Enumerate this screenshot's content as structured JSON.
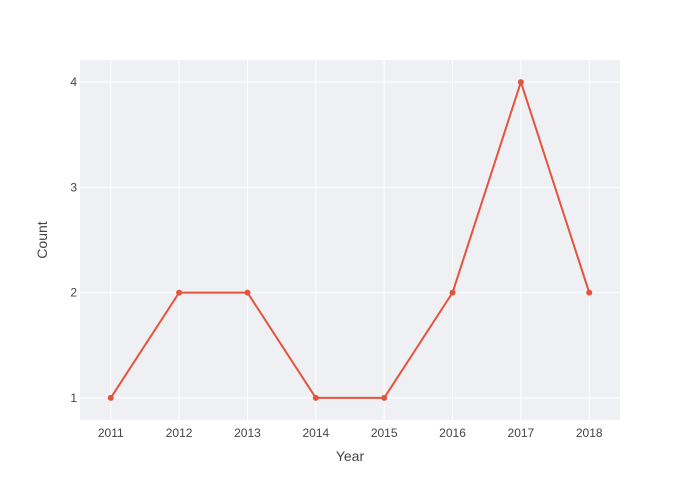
{
  "chart_data": {
    "type": "line",
    "title": "",
    "xlabel": "Year",
    "ylabel": "Count",
    "x": [
      2011,
      2012,
      2013,
      2014,
      2015,
      2016,
      2017,
      2018
    ],
    "series": [
      {
        "values": [
          1,
          2,
          2,
          1,
          1,
          2,
          4,
          2
        ],
        "color": "#e5533d"
      }
    ],
    "xlim": [
      2010.55,
      2018.45
    ],
    "ylim": [
      0.79,
      4.21
    ],
    "y_ticks": [
      1,
      2,
      3,
      4
    ],
    "grid": true,
    "plot_background": "#eff0f4",
    "gridline_color": "#ffffff",
    "legend": "none"
  }
}
